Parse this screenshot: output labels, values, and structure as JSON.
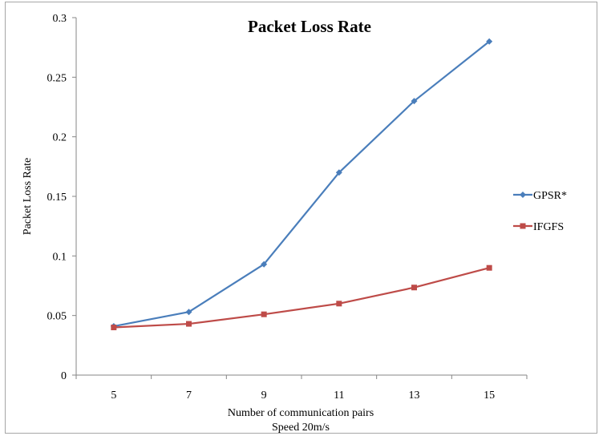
{
  "chart_data": {
    "type": "line",
    "title": "Packet Loss Rate",
    "xlabel": "Number of communication pairs",
    "xlabel_sub": "Speed 20m/s",
    "ylabel": "Packet Loss Rate",
    "categories": [
      "5",
      "7",
      "9",
      "11",
      "13",
      "15"
    ],
    "ylim": [
      0,
      0.3
    ],
    "yticks": [
      "0",
      "0.05",
      "0.1",
      "0.15",
      "0.2",
      "0.25",
      "0.3"
    ],
    "grid": false,
    "legend_position": "right",
    "series": [
      {
        "name": "GPSR*",
        "color": "#4a7ebb",
        "marker": "diamond",
        "values": [
          0.041,
          0.053,
          0.093,
          0.17,
          0.23,
          0.28
        ]
      },
      {
        "name": "IFGFS",
        "color": "#be4b48",
        "marker": "square",
        "values": [
          0.04,
          0.043,
          0.051,
          0.06,
          0.0735,
          0.09
        ]
      }
    ]
  }
}
